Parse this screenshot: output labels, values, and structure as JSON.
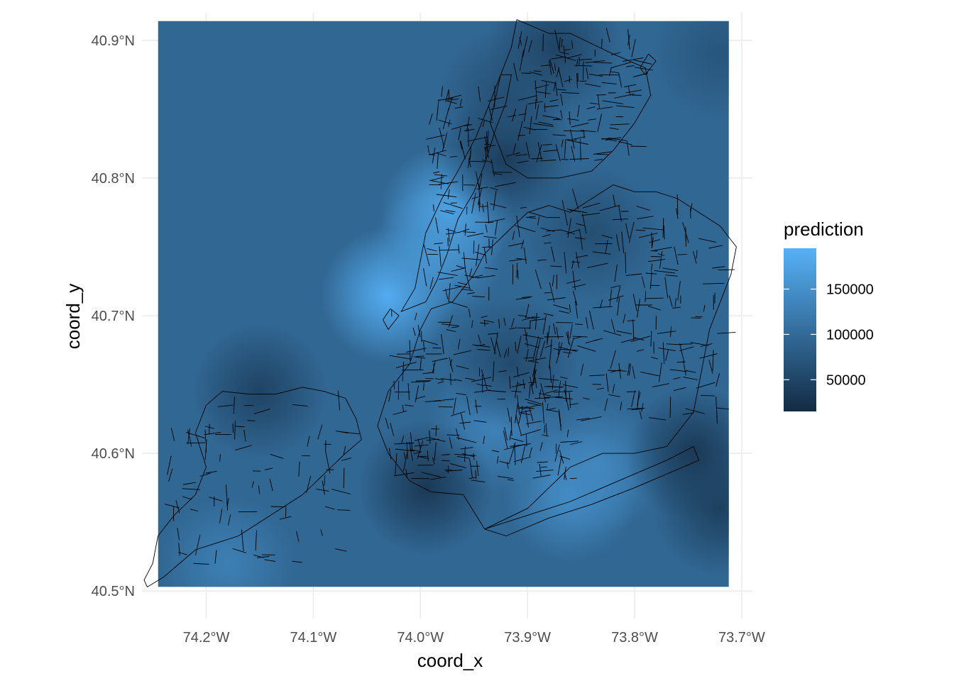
{
  "chart_data": {
    "type": "heatmap",
    "xlabel": "coord_x",
    "ylabel": "coord_y",
    "x_ticks": [
      "74.2°W",
      "74.1°W",
      "74.0°W",
      "73.9°W",
      "73.8°W",
      "73.7°W"
    ],
    "y_ticks": [
      "40.5°N",
      "40.6°N",
      "40.7°N",
      "40.8°N",
      "40.9°N"
    ],
    "x_tick_values": [
      -74.2,
      -74.1,
      -74.0,
      -73.9,
      -73.8,
      -73.7
    ],
    "y_tick_values": [
      40.5,
      40.6,
      40.7,
      40.8,
      40.9
    ],
    "xlim": [
      -74.26,
      -73.69
    ],
    "ylim": [
      40.48,
      40.92
    ],
    "raster_extent": {
      "x": [
        -74.245,
        -73.712
      ],
      "y": [
        40.503,
        40.914
      ]
    },
    "legend": {
      "title": "prediction",
      "labels": [
        "150000",
        "100000",
        "50000"
      ],
      "values": [
        150000,
        100000,
        50000
      ],
      "range": [
        15000,
        195000
      ],
      "low_color": "#132B43",
      "high_color": "#56B1F7",
      "placement": "right"
    },
    "base_value": 95000,
    "hotspots": [
      {
        "lon": -74.03,
        "lat": 40.715,
        "value": 195000
      },
      {
        "lon": -73.975,
        "lat": 40.775,
        "value": 185000
      },
      {
        "lon": -73.985,
        "lat": 40.745,
        "value": 160000
      },
      {
        "lon": -73.86,
        "lat": 40.57,
        "value": 150000
      },
      {
        "lon": -74.18,
        "lat": 40.52,
        "value": 130000
      },
      {
        "lon": -73.93,
        "lat": 40.62,
        "value": 135000
      },
      {
        "lon": -73.835,
        "lat": 40.59,
        "value": 140000
      }
    ],
    "coldspots": [
      {
        "lon": -73.995,
        "lat": 40.575,
        "value": 30000
      },
      {
        "lon": -73.92,
        "lat": 40.815,
        "value": 35000
      },
      {
        "lon": -73.745,
        "lat": 40.6,
        "value": 30000
      },
      {
        "lon": -74.15,
        "lat": 40.645,
        "value": 45000
      },
      {
        "lon": -73.875,
        "lat": 40.895,
        "value": 45000
      },
      {
        "lon": -73.92,
        "lat": 40.86,
        "value": 60000
      },
      {
        "lon": -73.915,
        "lat": 40.665,
        "value": 55000
      },
      {
        "lon": -73.84,
        "lat": 40.76,
        "value": 60000
      },
      {
        "lon": -73.72,
        "lat": 40.56,
        "value": 40000
      },
      {
        "lon": -73.72,
        "lat": 40.89,
        "value": 70000
      }
    ]
  }
}
